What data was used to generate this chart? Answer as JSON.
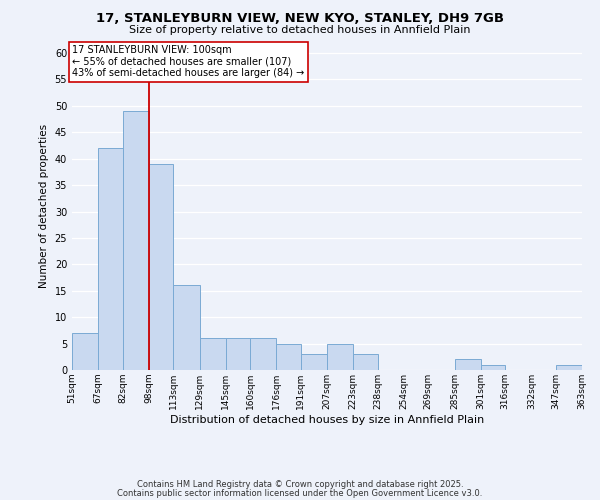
{
  "title_line1": "17, STANLEYBURN VIEW, NEW KYO, STANLEY, DH9 7GB",
  "title_line2": "Size of property relative to detached houses in Annfield Plain",
  "xlabel": "Distribution of detached houses by size in Annfield Plain",
  "ylabel": "Number of detached properties",
  "bar_edges": [
    51,
    67,
    82,
    98,
    113,
    129,
    145,
    160,
    176,
    191,
    207,
    223,
    238,
    254,
    269,
    285,
    301,
    316,
    332,
    347,
    363
  ],
  "bar_heights": [
    7,
    42,
    49,
    39,
    16,
    6,
    6,
    6,
    5,
    3,
    5,
    3,
    0,
    0,
    0,
    2,
    1,
    0,
    0,
    1
  ],
  "bar_color": "#c9d9f0",
  "bar_edgecolor": "#7aaad4",
  "vline_x": 98,
  "vline_color": "#cc0000",
  "annotation_text": "17 STANLEYBURN VIEW: 100sqm\n← 55% of detached houses are smaller (107)\n43% of semi-detached houses are larger (84) →",
  "annotation_box_edgecolor": "#cc0000",
  "annotation_box_facecolor": "#ffffff",
  "ylim": [
    0,
    62
  ],
  "yticks": [
    0,
    5,
    10,
    15,
    20,
    25,
    30,
    35,
    40,
    45,
    50,
    55,
    60
  ],
  "tick_labels": [
    "51sqm",
    "67sqm",
    "82sqm",
    "98sqm",
    "113sqm",
    "129sqm",
    "145sqm",
    "160sqm",
    "176sqm",
    "191sqm",
    "207sqm",
    "223sqm",
    "238sqm",
    "254sqm",
    "269sqm",
    "285sqm",
    "301sqm",
    "316sqm",
    "332sqm",
    "347sqm",
    "363sqm"
  ],
  "footer_line1": "Contains HM Land Registry data © Crown copyright and database right 2025.",
  "footer_line2": "Contains public sector information licensed under the Open Government Licence v3.0.",
  "bg_color": "#eef2fa",
  "plot_bg_color": "#eef2fa"
}
